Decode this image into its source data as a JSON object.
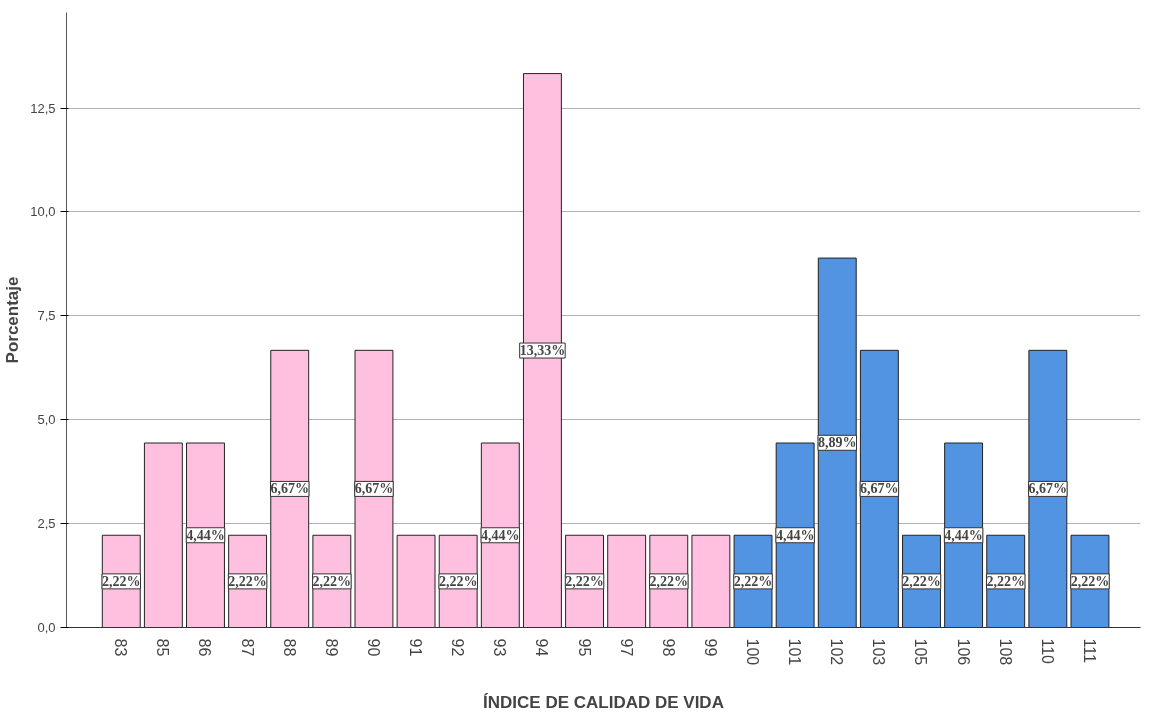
{
  "chart_data": {
    "type": "bar",
    "xlabel": "ÍNDICE DE CALIDAD DE VIDA",
    "ylabel": "Porcentaje",
    "categories": [
      "83",
      "85",
      "86",
      "87",
      "88",
      "89",
      "90",
      "91",
      "92",
      "93",
      "94",
      "95",
      "97",
      "98",
      "99",
      "100",
      "101",
      "102",
      "103",
      "105",
      "106",
      "108",
      "110",
      "111"
    ],
    "values": [
      2.22,
      4.44,
      4.44,
      2.22,
      6.67,
      2.22,
      6.67,
      2.22,
      2.22,
      4.44,
      13.33,
      2.22,
      2.22,
      2.22,
      2.22,
      2.22,
      4.44,
      8.89,
      6.67,
      2.22,
      4.44,
      2.22,
      6.67,
      2.22
    ],
    "colors": [
      "#ffc0e0",
      "#ffc0e0",
      "#ffc0e0",
      "#ffc0e0",
      "#ffc0e0",
      "#ffc0e0",
      "#ffc0e0",
      "#ffc0e0",
      "#ffc0e0",
      "#ffc0e0",
      "#ffc0e0",
      "#ffc0e0",
      "#ffc0e0",
      "#ffc0e0",
      "#ffc0e0",
      "#5294e2",
      "#5294e2",
      "#5294e2",
      "#5294e2",
      "#5294e2",
      "#5294e2",
      "#5294e2",
      "#5294e2",
      "#5294e2"
    ],
    "value_labels": [
      "2,22%",
      null,
      "4,44%",
      "2,22%",
      "6,67%",
      "2,22%",
      "6,67%",
      null,
      "2,22%",
      "4,44%",
      "13,33%",
      "2,22%",
      null,
      "2,22%",
      null,
      "2,22%",
      "4,44%",
      "8,89%",
      "6,67%",
      "2,22%",
      "4,44%",
      "2,22%",
      "6,67%",
      "2,22%"
    ],
    "ylim": [
      0,
      14.8
    ],
    "yticks": [
      {
        "value": 0,
        "label": "0,0"
      },
      {
        "value": 2.5,
        "label": "2,5"
      },
      {
        "value": 5,
        "label": "5,0"
      },
      {
        "value": 7.5,
        "label": "7,5"
      },
      {
        "value": 10,
        "label": "10,0"
      },
      {
        "value": 12.5,
        "label": "12,5"
      }
    ],
    "grid": "y"
  }
}
